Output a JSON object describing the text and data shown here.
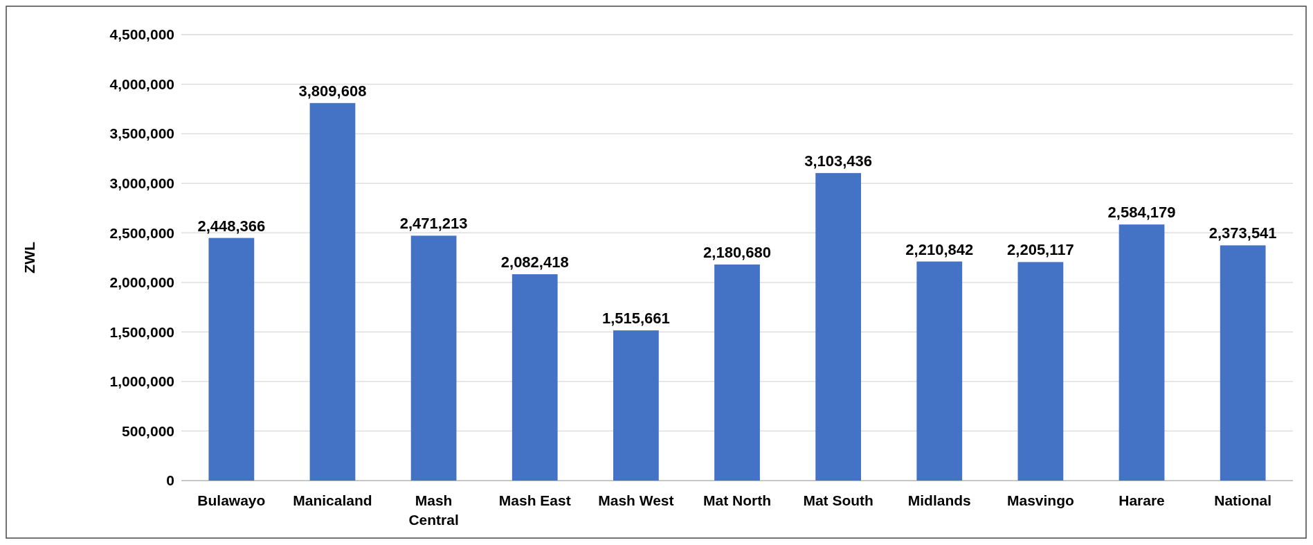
{
  "chart_data": {
    "type": "bar",
    "ylabel": "ZWL",
    "categories": [
      "Bulawayo",
      "Manicaland",
      "Mash Central",
      "Mash East",
      "Mash West",
      "Mat North",
      "Mat South",
      "Midlands",
      "Masvingo",
      "Harare",
      "National"
    ],
    "values": [
      2448366,
      3809608,
      2471213,
      2082418,
      1515661,
      2180680,
      3103436,
      2210842,
      2205117,
      2584179,
      2373541
    ],
    "value_labels": [
      "2,448,366",
      "3,809,608",
      "2,471,213",
      "2,082,418",
      "1,515,661",
      "2,180,680",
      "3,103,436",
      "2,210,842",
      "2,205,117",
      "2,584,179",
      "2,373,541"
    ],
    "color": "#4472c4",
    "ylim": [
      0,
      4500000
    ],
    "yticks": [
      {
        "value": 0,
        "label": "0"
      },
      {
        "value": 500000,
        "label": "500,000"
      },
      {
        "value": 1000000,
        "label": "1,000,000"
      },
      {
        "value": 1500000,
        "label": "1,500,000"
      },
      {
        "value": 2000000,
        "label": "2,000,000"
      },
      {
        "value": 2500000,
        "label": "2,500,000"
      },
      {
        "value": 3000000,
        "label": "3,000,000"
      },
      {
        "value": 3500000,
        "label": "3,500,000"
      },
      {
        "value": 4000000,
        "label": "4,000,000"
      },
      {
        "value": 4500000,
        "label": "4,500,000"
      }
    ],
    "grid": "y"
  }
}
